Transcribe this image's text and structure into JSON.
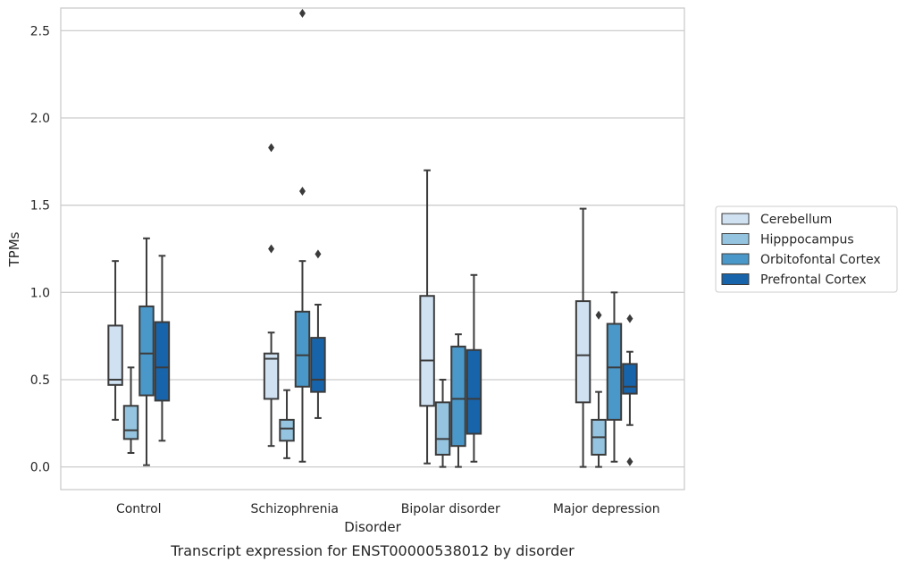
{
  "chart_data": {
    "type": "boxplot",
    "title": "",
    "caption": "Transcript expression for ENST00000538012 by disorder",
    "xlabel": "Disorder",
    "ylabel": "TPMs",
    "ylim": [
      -0.13,
      2.63
    ],
    "yticks": [
      0.0,
      0.5,
      1.0,
      1.5,
      2.0,
      2.5
    ],
    "ytick_labels": [
      "0.0",
      "0.5",
      "1.0",
      "1.5",
      "2.0",
      "2.5"
    ],
    "categories": [
      "Control",
      "Schizophrenia",
      "Bipolar disorder",
      "Major depression"
    ],
    "grid": true,
    "legend_position": "right",
    "series": [
      {
        "name": "Cerebellum",
        "color": "#d0e1f2",
        "boxes": [
          {
            "whislo": 0.27,
            "q1": 0.47,
            "med": 0.5,
            "q3": 0.81,
            "whishi": 1.18,
            "fliers": []
          },
          {
            "whislo": 0.12,
            "q1": 0.39,
            "med": 0.62,
            "q3": 0.65,
            "whishi": 0.77,
            "fliers": [
              1.25,
              1.83
            ]
          },
          {
            "whislo": 0.02,
            "q1": 0.35,
            "med": 0.61,
            "q3": 0.98,
            "whishi": 1.7,
            "fliers": []
          },
          {
            "whislo": 0.0,
            "q1": 0.37,
            "med": 0.64,
            "q3": 0.95,
            "whishi": 1.48,
            "fliers": []
          }
        ]
      },
      {
        "name": "Hipppocampus",
        "color": "#94c4df",
        "boxes": [
          {
            "whislo": 0.08,
            "q1": 0.16,
            "med": 0.21,
            "q3": 0.35,
            "whishi": 0.57,
            "fliers": []
          },
          {
            "whislo": 0.05,
            "q1": 0.15,
            "med": 0.22,
            "q3": 0.27,
            "whishi": 0.44,
            "fliers": []
          },
          {
            "whislo": 0.0,
            "q1": 0.07,
            "med": 0.16,
            "q3": 0.37,
            "whishi": 0.5,
            "fliers": []
          },
          {
            "whislo": 0.0,
            "q1": 0.07,
            "med": 0.17,
            "q3": 0.27,
            "whishi": 0.43,
            "fliers": [
              0.87
            ]
          }
        ]
      },
      {
        "name": "Orbitofontal Cortex",
        "color": "#4a98c9",
        "boxes": [
          {
            "whislo": 0.01,
            "q1": 0.41,
            "med": 0.65,
            "q3": 0.92,
            "whishi": 1.31,
            "fliers": []
          },
          {
            "whislo": 0.03,
            "q1": 0.46,
            "med": 0.64,
            "q3": 0.89,
            "whishi": 1.18,
            "fliers": [
              1.58,
              2.6
            ]
          },
          {
            "whislo": 0.0,
            "q1": 0.12,
            "med": 0.39,
            "q3": 0.69,
            "whishi": 0.76,
            "fliers": []
          },
          {
            "whislo": 0.03,
            "q1": 0.27,
            "med": 0.57,
            "q3": 0.82,
            "whishi": 1.0,
            "fliers": []
          }
        ]
      },
      {
        "name": "Prefrontal Cortex",
        "color": "#1764ab",
        "boxes": [
          {
            "whislo": 0.15,
            "q1": 0.38,
            "med": 0.57,
            "q3": 0.83,
            "whishi": 1.21,
            "fliers": []
          },
          {
            "whislo": 0.28,
            "q1": 0.43,
            "med": 0.5,
            "q3": 0.74,
            "whishi": 0.93,
            "fliers": [
              1.22
            ]
          },
          {
            "whislo": 0.03,
            "q1": 0.19,
            "med": 0.39,
            "q3": 0.67,
            "whishi": 1.1,
            "fliers": []
          },
          {
            "whislo": 0.24,
            "q1": 0.42,
            "med": 0.46,
            "q3": 0.59,
            "whishi": 0.66,
            "fliers": [
              0.03,
              0.85
            ]
          }
        ]
      }
    ]
  }
}
